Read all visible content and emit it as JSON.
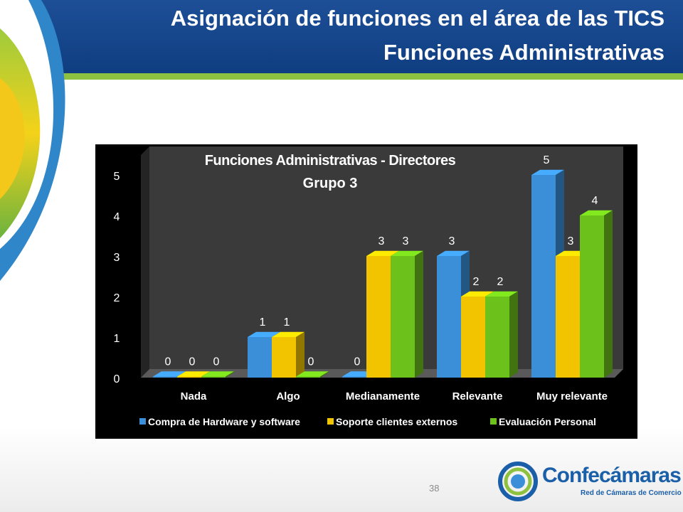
{
  "slide": {
    "title_line1": "Asignación de funciones en el área de las TICS",
    "title_line2": "Funciones Administrativas",
    "page_number": "38",
    "brand_name": "Confecámaras",
    "brand_subtitle": "Red de Cámaras de Comercio"
  },
  "colors": {
    "header": "#1d4f97",
    "stripe": "#8fc140",
    "series": [
      "#3a8fd8",
      "#f2c400",
      "#6cc21a"
    ]
  },
  "chart_data": {
    "type": "bar",
    "title": "Funciones Administrativas - Directores",
    "subtitle": "Grupo 3",
    "categories": [
      "Nada",
      "Algo",
      "Medianamente",
      "Relevante",
      "Muy relevante"
    ],
    "series": [
      {
        "name": "Compra de Hardware y software",
        "values": [
          0,
          1,
          0,
          3,
          5
        ]
      },
      {
        "name": "Soporte clientes externos",
        "values": [
          0,
          1,
          3,
          2,
          3
        ]
      },
      {
        "name": "Evaluación Personal",
        "values": [
          0,
          0,
          3,
          2,
          4
        ]
      }
    ],
    "yticks": [
      "0",
      "1",
      "2",
      "3",
      "4",
      "5"
    ],
    "ylim": [
      0,
      5
    ],
    "grid": false,
    "legend": "bottom",
    "data_labels": true
  }
}
